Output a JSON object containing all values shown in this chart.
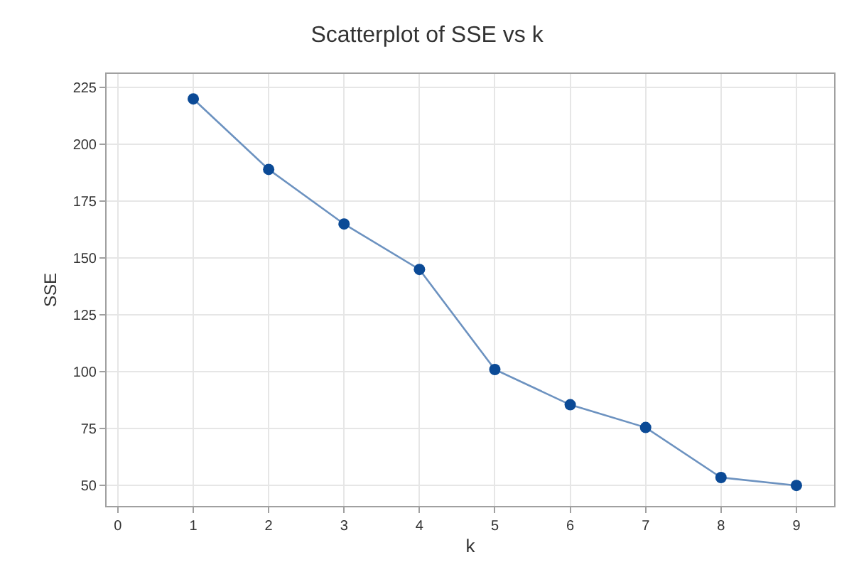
{
  "chart_data": {
    "type": "line",
    "title": "Scatterplot of SSE vs k",
    "xlabel": "k",
    "ylabel": "SSE",
    "x": [
      1,
      2,
      3,
      4,
      5,
      6,
      7,
      8,
      9
    ],
    "series": [
      {
        "color": "#0b4a96",
        "values": [
          220,
          189,
          165,
          145,
          101,
          85.5,
          75.5,
          53.5,
          50
        ]
      }
    ],
    "xlim": [
      -0.15,
      9.5
    ],
    "xticks": [
      0,
      1,
      2,
      3,
      4,
      5,
      6,
      7,
      8,
      9
    ],
    "ylim": [
      41,
      231
    ],
    "yticks": [
      50,
      75,
      100,
      125,
      150,
      175,
      200,
      225
    ],
    "grid": true,
    "marker": "circle",
    "line_style": "solid",
    "legend": false
  }
}
